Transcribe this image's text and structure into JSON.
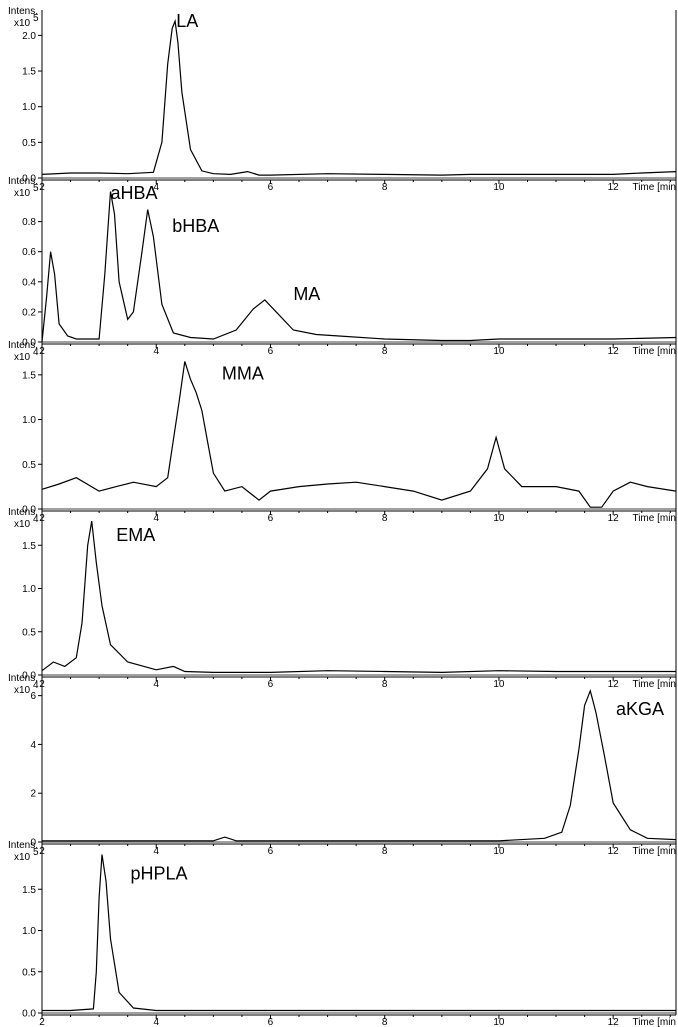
{
  "chart_data": [
    {
      "type": "line",
      "y_axis_label": "Intens.",
      "y_multiplier": "x10",
      "y_exponent": "5",
      "x_unit_label": "Time [min",
      "xlim": [
        2,
        13.1
      ],
      "ylim": [
        0,
        2.3
      ],
      "x_ticks": [
        2,
        4,
        6,
        8,
        10,
        12
      ],
      "y_ticks": [
        0.0,
        0.5,
        1.0,
        1.5,
        2.0
      ],
      "y_tick_labels": [
        "0.0",
        "0.5",
        "1.0",
        "1.5",
        "2.0"
      ],
      "peak_labels": [
        {
          "text": "LA",
          "x": 4.35,
          "y": 2.12
        }
      ],
      "series": [
        {
          "x": [
            2.0,
            2.5,
            3.0,
            3.5,
            3.95,
            4.1,
            4.2,
            4.28,
            4.33,
            4.38,
            4.45,
            4.6,
            4.8,
            5.0,
            5.3,
            5.6,
            5.8,
            6.0,
            7.0,
            8.0,
            9.0,
            9.5,
            10.0,
            11.0,
            11.5,
            12.0,
            12.5,
            13.1
          ],
          "y": [
            0.05,
            0.07,
            0.07,
            0.06,
            0.08,
            0.5,
            1.6,
            2.1,
            2.2,
            1.9,
            1.2,
            0.4,
            0.1,
            0.06,
            0.05,
            0.09,
            0.04,
            0.04,
            0.06,
            0.05,
            0.04,
            0.05,
            0.05,
            0.05,
            0.05,
            0.05,
            0.07,
            0.09
          ]
        }
      ]
    },
    {
      "type": "line",
      "y_axis_label": "Intens.",
      "y_multiplier": "x10",
      "y_exponent": "5",
      "x_unit_label": "Time [min",
      "xlim": [
        2,
        13.1
      ],
      "ylim": [
        0,
        1.05
      ],
      "x_ticks": [
        2,
        4,
        6,
        8,
        10,
        12
      ],
      "y_ticks": [
        0.0,
        0.2,
        0.4,
        0.6,
        0.8
      ],
      "y_tick_labels": [
        "0.0",
        "0.2",
        "0.4",
        "0.6",
        "0.8"
      ],
      "peak_labels": [
        {
          "text": "aHBA",
          "x": 3.2,
          "y": 0.95
        },
        {
          "text": "bHBA",
          "x": 4.28,
          "y": 0.73
        },
        {
          "text": "MA",
          "x": 6.4,
          "y": 0.28
        }
      ],
      "series": [
        {
          "x": [
            2.0,
            2.08,
            2.15,
            2.22,
            2.3,
            2.45,
            2.6,
            2.8,
            3.0,
            3.1,
            3.2,
            3.27,
            3.35,
            3.5,
            3.6,
            3.75,
            3.85,
            3.95,
            4.1,
            4.3,
            4.6,
            5.0,
            5.4,
            5.7,
            5.9,
            6.1,
            6.4,
            6.8,
            7.2,
            8.0,
            9.0,
            9.5,
            10.0,
            11.0,
            12.0,
            13.1
          ],
          "y": [
            0.0,
            0.3,
            0.6,
            0.45,
            0.12,
            0.04,
            0.02,
            0.02,
            0.02,
            0.45,
            1.0,
            0.85,
            0.4,
            0.15,
            0.2,
            0.6,
            0.88,
            0.7,
            0.25,
            0.06,
            0.03,
            0.02,
            0.08,
            0.22,
            0.28,
            0.2,
            0.08,
            0.05,
            0.04,
            0.02,
            0.01,
            0.01,
            0.02,
            0.02,
            0.02,
            0.03
          ]
        }
      ]
    },
    {
      "type": "line",
      "y_axis_label": "Intens.",
      "y_multiplier": "x10",
      "y_exponent": "4",
      "x_unit_label": "Time [min",
      "xlim": [
        2,
        13.1
      ],
      "ylim": [
        0,
        1.8
      ],
      "x_ticks": [
        2,
        4,
        6,
        8,
        10,
        12
      ],
      "y_ticks": [
        0.0,
        0.5,
        1.0,
        1.5
      ],
      "y_tick_labels": [
        "0.0",
        "0.5",
        "1.0",
        "1.5"
      ],
      "peak_labels": [
        {
          "text": "MMA",
          "x": 5.15,
          "y": 1.45
        }
      ],
      "series": [
        {
          "x": [
            2.0,
            2.3,
            2.6,
            3.0,
            3.3,
            3.6,
            4.0,
            4.2,
            4.4,
            4.5,
            4.6,
            4.7,
            4.8,
            4.9,
            5.0,
            5.2,
            5.5,
            5.8,
            6.0,
            6.5,
            7.0,
            7.5,
            8.0,
            8.5,
            9.0,
            9.5,
            9.8,
            9.95,
            10.1,
            10.4,
            11.0,
            11.4,
            11.6,
            11.8,
            12.0,
            12.3,
            12.6,
            13.1
          ],
          "y": [
            0.22,
            0.28,
            0.35,
            0.2,
            0.25,
            0.3,
            0.25,
            0.35,
            1.2,
            1.65,
            1.45,
            1.3,
            1.1,
            0.75,
            0.4,
            0.2,
            0.25,
            0.1,
            0.2,
            0.25,
            0.28,
            0.3,
            0.25,
            0.2,
            0.1,
            0.2,
            0.45,
            0.8,
            0.45,
            0.25,
            0.25,
            0.2,
            0.02,
            0.02,
            0.2,
            0.3,
            0.25,
            0.2
          ]
        }
      ]
    },
    {
      "type": "line",
      "y_axis_label": "Intens.",
      "y_multiplier": "x10",
      "y_exponent": "4",
      "x_unit_label": "Time [min",
      "xlim": [
        2,
        13.1
      ],
      "ylim": [
        0,
        1.85
      ],
      "x_ticks": [
        2,
        4,
        6,
        8,
        10,
        12
      ],
      "y_ticks": [
        0.0,
        0.5,
        1.0,
        1.5
      ],
      "y_tick_labels": [
        "0.0",
        "0.5",
        "1.0",
        "1.5"
      ],
      "peak_labels": [
        {
          "text": "EMA",
          "x": 3.3,
          "y": 1.55
        }
      ],
      "series": [
        {
          "x": [
            2.0,
            2.2,
            2.4,
            2.6,
            2.7,
            2.8,
            2.87,
            2.95,
            3.05,
            3.2,
            3.5,
            4.0,
            4.3,
            4.5,
            5.0,
            6.0,
            7.0,
            8.0,
            9.0,
            10.0,
            11.0,
            12.0,
            13.1
          ],
          "y": [
            0.05,
            0.15,
            0.1,
            0.2,
            0.6,
            1.5,
            1.78,
            1.3,
            0.8,
            0.35,
            0.15,
            0.06,
            0.1,
            0.04,
            0.03,
            0.03,
            0.05,
            0.04,
            0.03,
            0.05,
            0.04,
            0.04,
            0.04
          ]
        }
      ]
    },
    {
      "type": "line",
      "y_axis_label": "Intens.",
      "y_multiplier": "x10",
      "y_exponent": "4",
      "x_unit_label": "Time [min",
      "xlim": [
        2,
        13.1
      ],
      "ylim": [
        0,
        6.6
      ],
      "x_ticks": [
        2,
        4,
        6,
        8,
        10,
        12
      ],
      "y_ticks": [
        0,
        2,
        4,
        6
      ],
      "y_tick_labels": [
        "0",
        "2",
        "4",
        "6"
      ],
      "peak_labels": [
        {
          "text": "aKGA",
          "x": 12.05,
          "y": 5.2
        }
      ],
      "series": [
        {
          "x": [
            2.0,
            4.0,
            5.0,
            5.2,
            5.4,
            6.0,
            8.0,
            10.0,
            10.8,
            11.1,
            11.25,
            11.4,
            11.5,
            11.6,
            11.7,
            11.85,
            12.0,
            12.3,
            12.6,
            13.1
          ],
          "y": [
            0.05,
            0.05,
            0.05,
            0.2,
            0.05,
            0.05,
            0.05,
            0.05,
            0.15,
            0.4,
            1.5,
            3.8,
            5.6,
            6.2,
            5.3,
            3.5,
            1.6,
            0.5,
            0.15,
            0.1
          ]
        }
      ]
    },
    {
      "type": "line",
      "y_axis_label": "Intens.",
      "y_multiplier": "x10",
      "y_exponent": "5",
      "x_unit_label": "Time [min",
      "xlim": [
        2,
        13.1
      ],
      "ylim": [
        0,
        2.0
      ],
      "x_ticks": [
        2,
        4,
        6,
        8,
        10,
        12
      ],
      "y_ticks": [
        0.0,
        0.5,
        1.0,
        1.5
      ],
      "y_tick_labels": [
        "0.0",
        "0.5",
        "1.0",
        "1.5"
      ],
      "peak_labels": [
        {
          "text": "pHPLA",
          "x": 3.55,
          "y": 1.62
        }
      ],
      "series": [
        {
          "x": [
            2.0,
            2.5,
            2.9,
            2.95,
            3.0,
            3.05,
            3.12,
            3.2,
            3.35,
            3.6,
            4.0,
            6.0,
            8.0,
            10.0,
            12.0,
            13.1
          ],
          "y": [
            0.03,
            0.03,
            0.05,
            0.5,
            1.4,
            1.92,
            1.6,
            0.9,
            0.25,
            0.06,
            0.03,
            0.03,
            0.03,
            0.03,
            0.03,
            0.03
          ]
        }
      ]
    }
  ]
}
